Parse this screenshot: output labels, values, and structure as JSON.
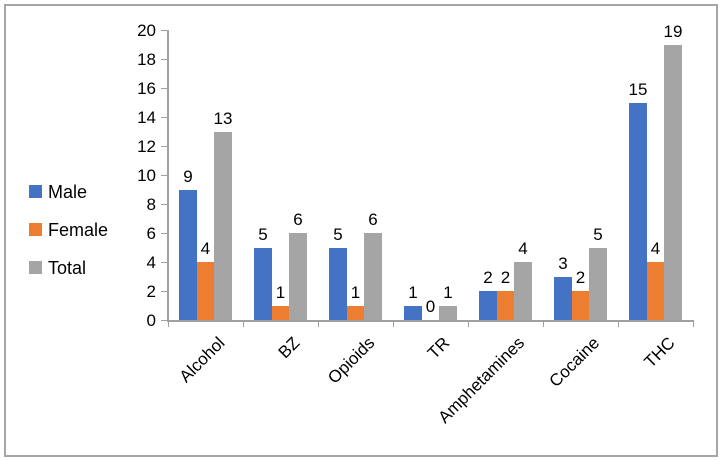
{
  "chart_data": {
    "type": "bar",
    "title": "",
    "xlabel": "",
    "ylabel": "",
    "categories": [
      "Alcohol",
      "BZ",
      "Opioids",
      "TR",
      "Amphetamines",
      "Cocaine",
      "THC"
    ],
    "series": [
      {
        "name": "Male",
        "color": "#4472C4",
        "values": [
          9,
          5,
          5,
          1,
          2,
          3,
          15
        ]
      },
      {
        "name": "Female",
        "color": "#ED7D31",
        "values": [
          4,
          1,
          1,
          0,
          2,
          2,
          4
        ]
      },
      {
        "name": "Total",
        "color": "#A5A5A5",
        "values": [
          13,
          6,
          6,
          1,
          4,
          5,
          19
        ]
      }
    ],
    "ylim": [
      0,
      20
    ],
    "yticks": [
      0,
      2,
      4,
      6,
      8,
      10,
      12,
      14,
      16,
      18,
      20
    ],
    "grid": false,
    "legend_position": "left",
    "data_labels": true
  },
  "style": {
    "frame_border_color": "#A6A6A6",
    "axis_color": "#A0A0A0",
    "text_color": "#000000",
    "background": "#FFFFFF"
  }
}
